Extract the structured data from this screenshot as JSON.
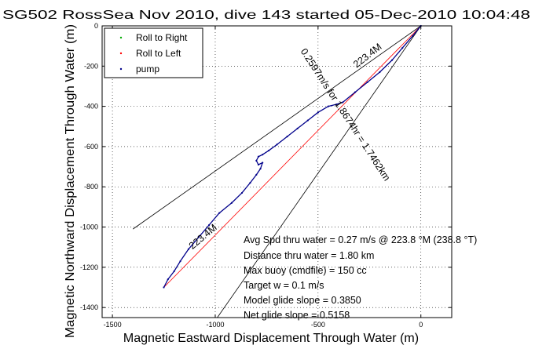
{
  "chart_data": {
    "type": "line",
    "title": "SG502 RossSea Nov 2010, dive 143 started 05-Dec-2010 10:04:48",
    "xlabel": "Magnetic Eastward Displacement Through Water (m)",
    "ylabel": "Magnetic Northward Displacement Through Water (m)",
    "xlim": [
      -1550,
      150
    ],
    "ylim": [
      -1450,
      0
    ],
    "xticks": [
      -1500,
      -1000,
      -500,
      0
    ],
    "yticks": [
      0,
      -200,
      -400,
      -600,
      -800,
      -1000,
      -1200,
      -1400
    ],
    "grid": true,
    "legend": {
      "placement": "top-left",
      "entries": [
        "Roll to Right",
        "Roll to Left",
        "pump"
      ]
    },
    "series": [
      {
        "name": "pump",
        "color": "#00008b",
        "x": [
          0,
          -40,
          -90,
          -140,
          -200,
          -260,
          -320,
          -380,
          -410,
          -450,
          -500,
          -550,
          -600,
          -650,
          -700,
          -740,
          -770,
          -790,
          -800,
          -790,
          -770,
          -780,
          -800,
          -830,
          -870,
          -920,
          -980,
          -1030,
          -1080,
          -1130,
          -1170,
          -1200,
          -1230,
          -1250
        ],
        "y": [
          0,
          -50,
          -110,
          -170,
          -230,
          -280,
          -330,
          -380,
          -390,
          -400,
          -430,
          -470,
          -510,
          -550,
          -590,
          -620,
          -640,
          -650,
          -670,
          -690,
          -680,
          -710,
          -740,
          -780,
          -830,
          -880,
          -930,
          -990,
          -1050,
          -1110,
          -1170,
          -1220,
          -1260,
          -1300
        ]
      },
      {
        "name": "Roll to Left",
        "color": "#ff0000",
        "x": [
          0,
          -1250
        ],
        "y": [
          0,
          -1300
        ]
      }
    ],
    "cone_lines": [
      {
        "x": [
          0,
          -1400
        ],
        "y": [
          0,
          -1010
        ]
      },
      {
        "x": [
          0,
          -990
        ],
        "y": [
          0,
          -1450
        ]
      }
    ],
    "line_labels": [
      "223.4M",
      "0.2597m/s for 1.8674hr = 1.7462km",
      "223.4M"
    ],
    "annotations": [
      "Avg Spd thru water =  0.27 m/s @ 223.8    °M (238.8 °T)",
      "Distance thru water =  1.80 km",
      "Max buoy (cmdfile) = 150 cc",
      "Target w = 0.1 m/s",
      "Model glide slope = 0.3850",
      "Net glide slope = 0.5158"
    ],
    "colors": {
      "roll_right": "#00aa00",
      "roll_left": "#ff0000",
      "pump": "#00008b",
      "axes": "#000000"
    }
  }
}
